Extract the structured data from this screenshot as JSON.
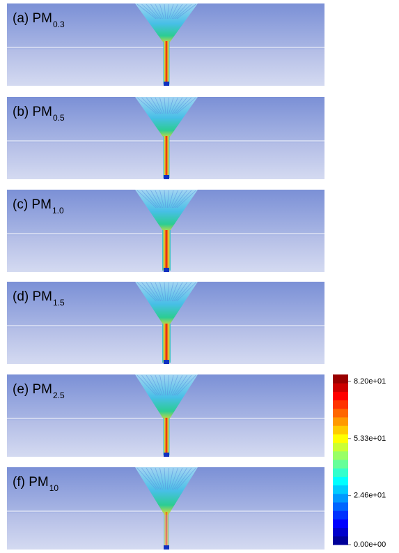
{
  "panels": [
    {
      "label": "(a)  PM",
      "subscript": "0.3"
    },
    {
      "label": "(b)  PM",
      "subscript": "0.5"
    },
    {
      "label": "(c)  PM",
      "subscript": "1.0"
    },
    {
      "label": "(d)  PM",
      "subscript": "1.5"
    },
    {
      "label": "(e)  PM",
      "subscript": "2.5"
    },
    {
      "label": "(f)  PM",
      "subscript": "10"
    }
  ],
  "colorbar": {
    "lim": [
      0,
      82
    ],
    "ticks": [
      {
        "value": 82,
        "label": "8.20e+01"
      },
      {
        "value": 53.3,
        "label": "5.33e+01"
      },
      {
        "value": 24.6,
        "label": "2.46e+01"
      },
      {
        "value": 0,
        "label": "0.00e+00"
      }
    ]
  }
}
